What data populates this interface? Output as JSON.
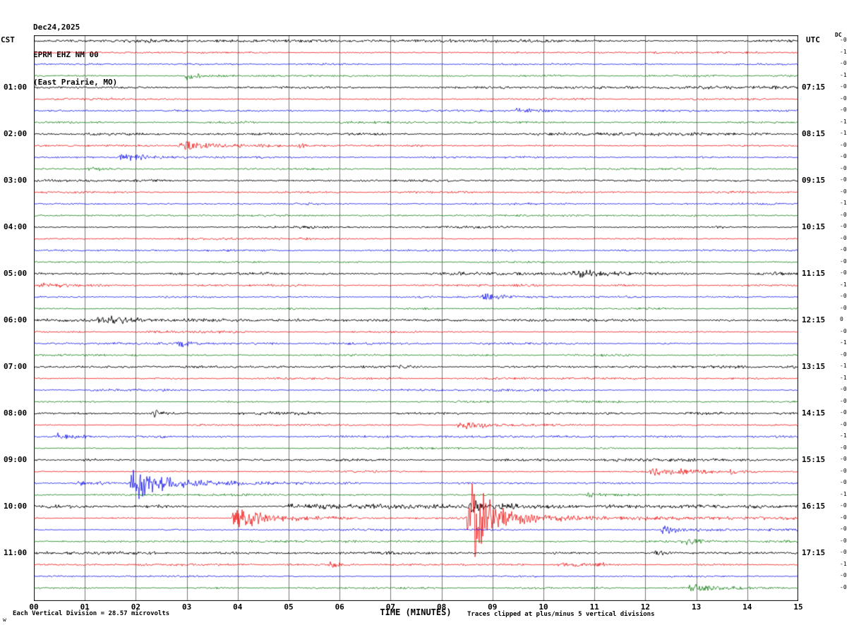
{
  "header": {
    "date": "Dec24,2025",
    "station": "EPRM EHZ NM 00",
    "location": "(East Prairie, MO)"
  },
  "axes": {
    "left_label": "CST",
    "right_label": "UTC",
    "dc_label": "DC",
    "x_label": "TIME (MINUTES)",
    "x_ticks": [
      "00",
      "01",
      "02",
      "03",
      "04",
      "05",
      "06",
      "07",
      "08",
      "09",
      "10",
      "11",
      "12",
      "13",
      "14",
      "15"
    ]
  },
  "footer": {
    "left": "Each Vertical Division =   28.57 microvolts",
    "right": "Traces clipped at plus/minus 5 vertical divisions",
    "corner": "w"
  },
  "chart_data": {
    "type": "line",
    "title": "EPRM EHZ NM 00 helicorder seismogram",
    "description": "12-hour helicorder: 48 traces of 15 minutes each, colors cycling black/red/blue/green; events listed as minute-offset bursts with amplitude in pixels",
    "x_range": [
      0,
      15
    ],
    "minutes_per_trace": 15,
    "microvolts_per_division": 28.57,
    "clip_divisions": 5,
    "grid": true,
    "colors": {
      "black": "#000000",
      "red": "#ee0000",
      "blue": "#0000ee",
      "green": "#007700"
    },
    "rows": [
      {
        "color": "black",
        "dc": "-0",
        "noise": 1.5,
        "events": []
      },
      {
        "color": "red",
        "dc": "-1",
        "noise": 1.0,
        "events": []
      },
      {
        "color": "blue",
        "dc": "-0",
        "noise": 1.0,
        "events": []
      },
      {
        "color": "green",
        "dc": "-1",
        "noise": 1.0,
        "events": [
          {
            "t": 3.0,
            "dur": 0.4,
            "amp": 5
          }
        ]
      },
      {
        "color": "black",
        "cst": "01:00",
        "utc": "07:15",
        "dc": "-0",
        "noise": 1.4,
        "events": []
      },
      {
        "color": "red",
        "dc": "-0",
        "noise": 1.0,
        "events": []
      },
      {
        "color": "blue",
        "dc": "-0",
        "noise": 1.0,
        "events": [
          {
            "t": 9.5,
            "dur": 0.2,
            "amp": 3
          }
        ]
      },
      {
        "color": "green",
        "dc": "-1",
        "noise": 1.0,
        "events": []
      },
      {
        "color": "black",
        "cst": "02:00",
        "utc": "08:15",
        "dc": "-1",
        "noise": 1.4,
        "events": []
      },
      {
        "color": "red",
        "dc": "-0",
        "noise": 1.0,
        "events": [
          {
            "t": 2.9,
            "dur": 0.5,
            "amp": 7
          },
          {
            "t": 3.4,
            "dur": 1.0,
            "amp": 3
          },
          {
            "t": 5.2,
            "dur": 0.3,
            "amp": 2.5
          }
        ]
      },
      {
        "color": "blue",
        "dc": "-0",
        "noise": 1.0,
        "events": [
          {
            "t": 1.7,
            "dur": 0.7,
            "amp": 5
          }
        ]
      },
      {
        "color": "green",
        "dc": "-0",
        "noise": 1.0,
        "events": [
          {
            "t": 1.1,
            "dur": 0.25,
            "amp": 3
          }
        ]
      },
      {
        "color": "black",
        "cst": "03:00",
        "utc": "09:15",
        "dc": "-0",
        "noise": 1.3,
        "events": []
      },
      {
        "color": "red",
        "dc": "-0",
        "noise": 1.0,
        "events": []
      },
      {
        "color": "blue",
        "dc": "-1",
        "noise": 1.0,
        "events": []
      },
      {
        "color": "green",
        "dc": "-0",
        "noise": 1.0,
        "events": []
      },
      {
        "color": "black",
        "cst": "04:00",
        "utc": "10:15",
        "dc": "-0",
        "noise": 1.3,
        "events": []
      },
      {
        "color": "red",
        "dc": "-0",
        "noise": 1.0,
        "events": []
      },
      {
        "color": "blue",
        "dc": "-0",
        "noise": 1.0,
        "events": []
      },
      {
        "color": "green",
        "dc": "-0",
        "noise": 1.0,
        "events": []
      },
      {
        "color": "black",
        "cst": "05:00",
        "utc": "11:15",
        "dc": "-0",
        "noise": 1.4,
        "events": [
          {
            "t": 10.6,
            "dur": 0.5,
            "amp": 6
          },
          {
            "t": 11.1,
            "dur": 0.3,
            "amp": 3
          }
        ]
      },
      {
        "color": "red",
        "dc": "-1",
        "noise": 1.1,
        "events": [
          {
            "t": 0.1,
            "dur": 0.6,
            "amp": 2.5
          }
        ]
      },
      {
        "color": "blue",
        "dc": "-0",
        "noise": 1.0,
        "events": [
          {
            "t": 8.85,
            "dur": 0.25,
            "amp": 5
          }
        ]
      },
      {
        "color": "green",
        "dc": "-0",
        "noise": 1.0,
        "events": []
      },
      {
        "color": "black",
        "cst": "06:00",
        "utc": "12:15",
        "dc": "0",
        "noise": 1.4,
        "events": [
          {
            "t": 1.25,
            "dur": 0.5,
            "amp": 6
          }
        ]
      },
      {
        "color": "red",
        "dc": "-0",
        "noise": 1.0,
        "events": []
      },
      {
        "color": "blue",
        "dc": "-1",
        "noise": 1.0,
        "events": [
          {
            "t": 2.85,
            "dur": 0.18,
            "amp": 7
          }
        ]
      },
      {
        "color": "green",
        "dc": "-0",
        "noise": 1.0,
        "events": []
      },
      {
        "color": "black",
        "cst": "07:00",
        "utc": "13:15",
        "dc": "-1",
        "noise": 1.3,
        "events": []
      },
      {
        "color": "red",
        "dc": "-1",
        "noise": 1.0,
        "events": []
      },
      {
        "color": "blue",
        "dc": "-0",
        "noise": 1.0,
        "events": []
      },
      {
        "color": "green",
        "dc": "-0",
        "noise": 1.0,
        "events": []
      },
      {
        "color": "black",
        "cst": "08:00",
        "utc": "14:15",
        "dc": "-0",
        "noise": 1.3,
        "events": [
          {
            "t": 2.35,
            "dur": 0.2,
            "amp": 6
          }
        ]
      },
      {
        "color": "red",
        "dc": "-0",
        "noise": 1.0,
        "events": [
          {
            "t": 8.35,
            "dur": 0.5,
            "amp": 6
          },
          {
            "t": 8.8,
            "dur": 0.5,
            "amp": 3
          }
        ]
      },
      {
        "color": "blue",
        "dc": "-1",
        "noise": 1.0,
        "events": [
          {
            "t": 0.45,
            "dur": 0.5,
            "amp": 4
          }
        ]
      },
      {
        "color": "green",
        "dc": "-0",
        "noise": 1.0,
        "events": []
      },
      {
        "color": "black",
        "cst": "09:00",
        "utc": "15:15",
        "dc": "-0",
        "noise": 1.3,
        "events": [
          {
            "t": 1.0,
            "dur": 0.3,
            "amp": 2.5
          }
        ]
      },
      {
        "color": "red",
        "dc": "-0",
        "noise": 1.0,
        "events": [
          {
            "t": 12.1,
            "dur": 0.7,
            "amp": 6
          },
          {
            "t": 12.7,
            "dur": 0.6,
            "amp": 4
          },
          {
            "t": 13.7,
            "dur": 0.3,
            "amp": 5
          }
        ]
      },
      {
        "color": "blue",
        "dc": "-0",
        "noise": 1.0,
        "events": [
          {
            "t": 0.8,
            "dur": 0.8,
            "amp": 3
          },
          {
            "t": 1.95,
            "dur": 0.6,
            "amp": 26
          },
          {
            "t": 2.5,
            "dur": 1.2,
            "amp": 7
          }
        ]
      },
      {
        "color": "green",
        "dc": "-1",
        "noise": 1.0,
        "events": [
          {
            "t": 10.9,
            "dur": 0.3,
            "amp": 3
          }
        ]
      },
      {
        "color": "black",
        "cst": "10:00",
        "utc": "16:15",
        "dc": "-0",
        "noise": 1.6,
        "events": [
          {
            "t": 5.0,
            "end": 9.5,
            "amp": 2.2
          },
          {
            "t": 8.6,
            "dur": 0.35,
            "amp": 8
          }
        ]
      },
      {
        "color": "red",
        "dc": "-0",
        "noise": 1.0,
        "events": [
          {
            "t": 3.95,
            "dur": 0.45,
            "amp": 20
          },
          {
            "t": 4.4,
            "dur": 0.8,
            "amp": 6
          },
          {
            "t": 8.55,
            "dur": 0.4,
            "amp": 78
          },
          {
            "t": 9.0,
            "dur": 1.2,
            "amp": 10
          },
          {
            "t": 10.0,
            "end": 15,
            "amp": 1.8
          }
        ]
      },
      {
        "color": "blue",
        "dc": "-0",
        "noise": 1.0,
        "events": [
          {
            "t": 12.35,
            "dur": 0.35,
            "amp": 6
          }
        ]
      },
      {
        "color": "green",
        "dc": "-0",
        "noise": 1.0,
        "events": [
          {
            "t": 12.75,
            "dur": 0.45,
            "amp": 4
          }
        ]
      },
      {
        "color": "black",
        "cst": "11:00",
        "utc": "17:15",
        "dc": "-0",
        "noise": 1.4,
        "events": [
          {
            "t": 12.2,
            "dur": 0.3,
            "amp": 3
          }
        ]
      },
      {
        "color": "red",
        "dc": "-1",
        "noise": 1.0,
        "events": [
          {
            "t": 5.85,
            "dur": 0.18,
            "amp": 4
          },
          {
            "t": 10.2,
            "end": 11.2,
            "amp": 2.2
          }
        ]
      },
      {
        "color": "blue",
        "dc": "-0",
        "noise": 1.0,
        "events": []
      },
      {
        "color": "green",
        "dc": "-0",
        "noise": 1.0,
        "events": [
          {
            "t": 12.9,
            "dur": 0.5,
            "amp": 5
          }
        ]
      }
    ]
  }
}
